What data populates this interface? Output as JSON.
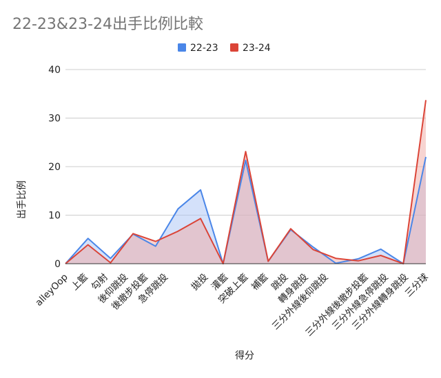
{
  "chart_data": {
    "type": "area",
    "title": "22-23&23-24出手比例比較",
    "xlabel": "得分",
    "ylabel": "出手比例",
    "ylim": [
      0,
      40
    ],
    "yticks": [
      0,
      10,
      20,
      30,
      40
    ],
    "grid": true,
    "legend_position": "top",
    "categories": [
      "alleyOop",
      "上籃",
      "勾射",
      "後仰跳投",
      "後撤步投籃",
      "急停跳投",
      "拋投",
      "灌籃",
      "突破上籃",
      "補籃",
      "跳投",
      "轉身跳投",
      "三分外線後仰跳投",
      "三分外線後撤步投籃",
      "三分外線急停跳投",
      "三分外線轉身跳投",
      "三分球"
    ],
    "x_points": [
      "alleyOop",
      "上籃",
      "勾射",
      "後仰跳投",
      "後撤步投籃",
      "急停跳投",
      "",
      "拋投",
      "灌籃",
      "突破上籃",
      "補籃",
      "跳投",
      "轉身跳投",
      "三分外線後仰跳投",
      "",
      "三分外線後撤步投籃",
      "三分外線急停跳投",
      "三分外線轉身跳投",
      "三分球"
    ],
    "series": [
      {
        "name": "22-23",
        "color": "#4a86e8",
        "fill": "#a9c4f5",
        "values": [
          0,
          5.2,
          1.1,
          6.1,
          3.6,
          11.3,
          15.2,
          0,
          21.3,
          0.5,
          7,
          3.4,
          0.1,
          1,
          3,
          0,
          22
        ]
      },
      {
        "name": "23-24",
        "color": "#db4437",
        "fill": "#f0a9a3",
        "values": [
          0,
          3.9,
          0.2,
          6.2,
          4.6,
          6.7,
          9.3,
          0,
          23.1,
          0.5,
          7.2,
          2.9,
          1.1,
          0.6,
          1.7,
          0,
          33.7
        ]
      }
    ]
  }
}
